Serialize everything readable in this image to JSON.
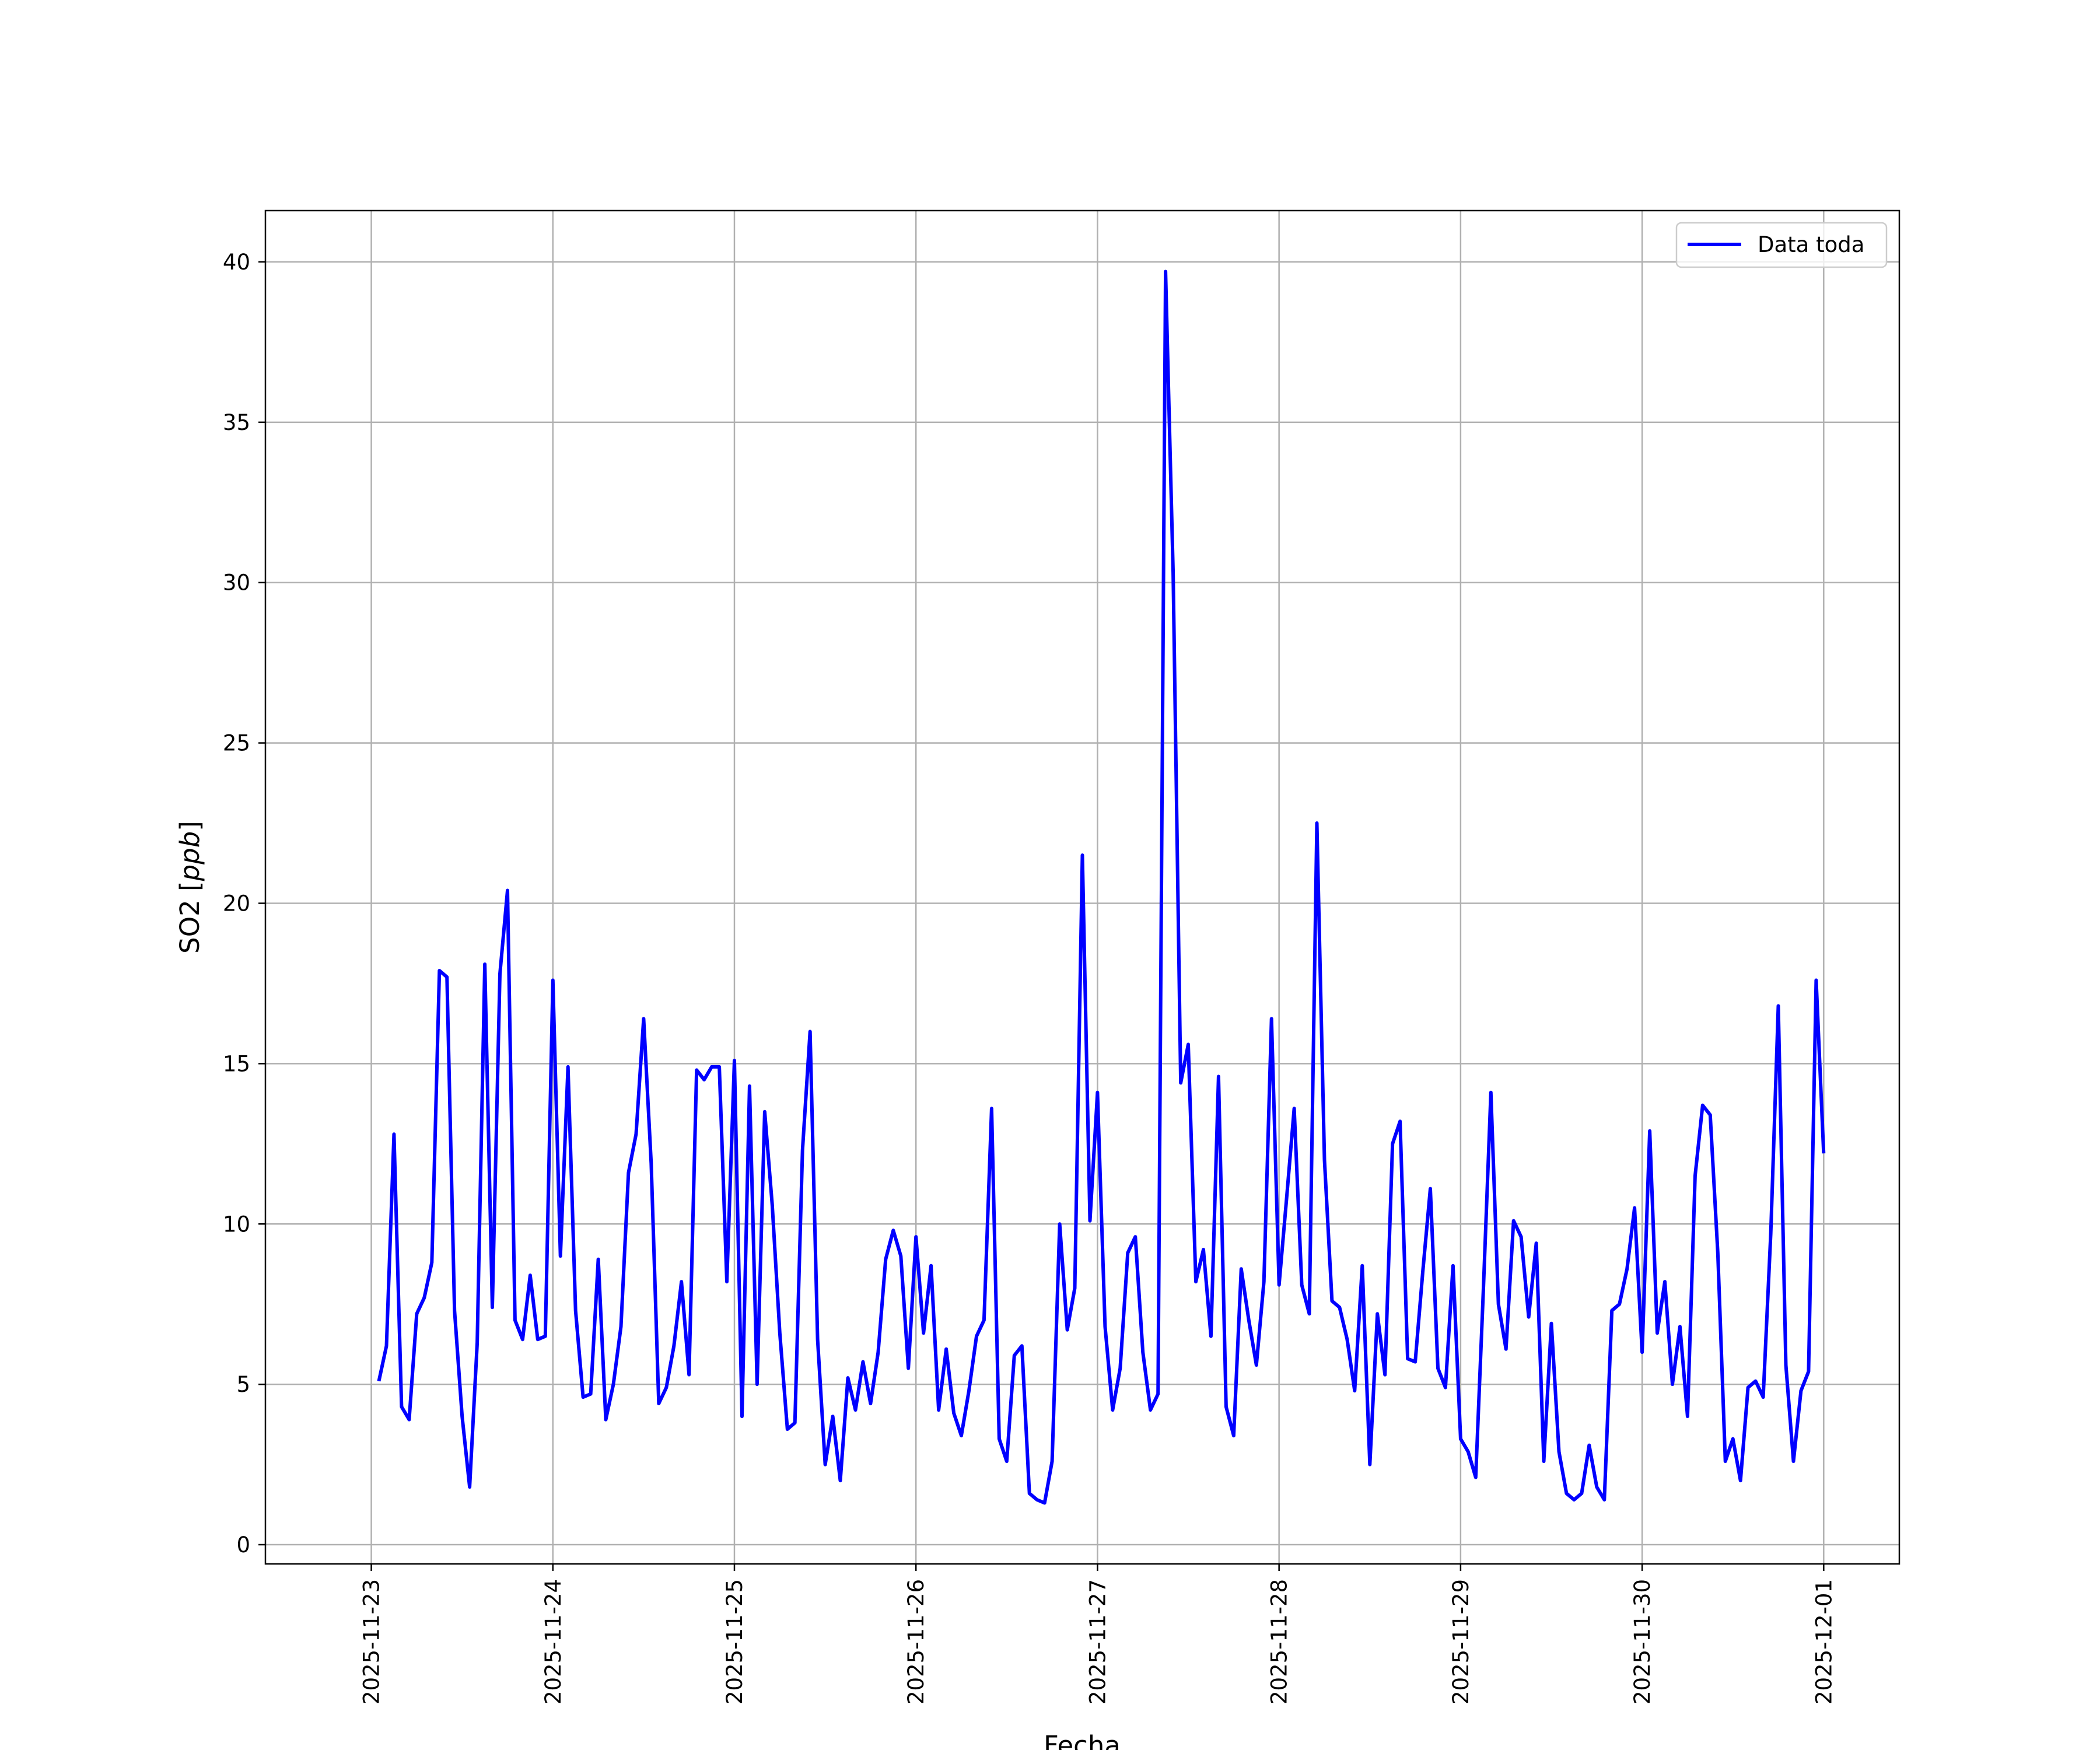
{
  "chart_data": {
    "type": "line",
    "title": "",
    "xlabel": "Fecha",
    "ylabel_main": "SO2 [",
    "ylabel_unit": "ppb",
    "ylabel_close": "]",
    "x_tick_labels": [
      "2025-11-23",
      "2025-11-24",
      "2025-11-25",
      "2025-11-26",
      "2025-11-27",
      "2025-11-28",
      "2025-11-29",
      "2025-11-30",
      "2025-12-01"
    ],
    "y_ticks": [
      0,
      5,
      10,
      15,
      20,
      25,
      30,
      35,
      40
    ],
    "ylim": [
      -0.6,
      41.6
    ],
    "xlim": [
      "2025-11-22T10:00",
      "2025-12-01T10:00"
    ],
    "grid": true,
    "legend_position": "top-right",
    "series": [
      {
        "name": "Data toda",
        "color": "#0000ff",
        "x": [
          "2025-11-23T01:00",
          "2025-11-23T02:00",
          "2025-11-23T03:00",
          "2025-11-23T04:00",
          "2025-11-23T05:00",
          "2025-11-23T06:00",
          "2025-11-23T07:00",
          "2025-11-23T08:00",
          "2025-11-23T09:00",
          "2025-11-23T10:00",
          "2025-11-23T11:00",
          "2025-11-23T12:00",
          "2025-11-23T13:00",
          "2025-11-23T14:00",
          "2025-11-23T15:00",
          "2025-11-23T16:00",
          "2025-11-23T17:00",
          "2025-11-23T18:00",
          "2025-11-23T19:00",
          "2025-11-23T20:00",
          "2025-11-23T21:00",
          "2025-11-23T22:00",
          "2025-11-23T23:00",
          "2025-11-24T00:00",
          "2025-11-24T01:00",
          "2025-11-24T02:00",
          "2025-11-24T03:00",
          "2025-11-24T04:00",
          "2025-11-24T05:00",
          "2025-11-24T06:00",
          "2025-11-24T07:00",
          "2025-11-24T08:00",
          "2025-11-24T09:00",
          "2025-11-24T10:00",
          "2025-11-24T11:00",
          "2025-11-24T12:00",
          "2025-11-24T13:00",
          "2025-11-24T14:00",
          "2025-11-24T15:00",
          "2025-11-24T16:00",
          "2025-11-24T17:00",
          "2025-11-24T18:00",
          "2025-11-24T19:00",
          "2025-11-24T20:00",
          "2025-11-24T21:00",
          "2025-11-24T22:00",
          "2025-11-24T23:00",
          "2025-11-25T00:00",
          "2025-11-25T01:00",
          "2025-11-25T02:00",
          "2025-11-25T03:00",
          "2025-11-25T04:00",
          "2025-11-25T05:00",
          "2025-11-25T06:00",
          "2025-11-25T07:00",
          "2025-11-25T08:00",
          "2025-11-25T09:00",
          "2025-11-25T10:00",
          "2025-11-25T11:00",
          "2025-11-25T12:00",
          "2025-11-25T13:00",
          "2025-11-25T14:00",
          "2025-11-25T15:00",
          "2025-11-25T16:00",
          "2025-11-25T17:00",
          "2025-11-25T18:00",
          "2025-11-25T19:00",
          "2025-11-25T20:00",
          "2025-11-25T21:00",
          "2025-11-25T22:00",
          "2025-11-25T23:00",
          "2025-11-26T00:00",
          "2025-11-26T01:00",
          "2025-11-26T02:00",
          "2025-11-26T03:00",
          "2025-11-26T04:00",
          "2025-11-26T05:00",
          "2025-11-26T06:00",
          "2025-11-26T07:00",
          "2025-11-26T08:00",
          "2025-11-26T09:00",
          "2025-11-26T10:00",
          "2025-11-26T11:00",
          "2025-11-26T12:00",
          "2025-11-26T13:00",
          "2025-11-26T14:00",
          "2025-11-26T15:00",
          "2025-11-26T16:00",
          "2025-11-26T17:00",
          "2025-11-26T18:00",
          "2025-11-26T19:00",
          "2025-11-26T20:00",
          "2025-11-26T21:00",
          "2025-11-26T22:00",
          "2025-11-26T23:00",
          "2025-11-27T00:00",
          "2025-11-27T01:00",
          "2025-11-27T02:00",
          "2025-11-27T03:00",
          "2025-11-27T04:00",
          "2025-11-27T05:00",
          "2025-11-27T06:00",
          "2025-11-27T07:00",
          "2025-11-27T08:00",
          "2025-11-27T09:00",
          "2025-11-27T10:00",
          "2025-11-27T11:00",
          "2025-11-27T12:00",
          "2025-11-27T13:00",
          "2025-11-27T14:00",
          "2025-11-27T15:00",
          "2025-11-27T16:00",
          "2025-11-27T17:00",
          "2025-11-27T18:00",
          "2025-11-27T19:00",
          "2025-11-27T20:00",
          "2025-11-27T21:00",
          "2025-11-27T22:00",
          "2025-11-27T23:00",
          "2025-11-28T00:00",
          "2025-11-28T01:00",
          "2025-11-28T02:00",
          "2025-11-28T03:00",
          "2025-11-28T04:00",
          "2025-11-28T05:00",
          "2025-11-28T06:00",
          "2025-11-28T07:00",
          "2025-11-28T08:00",
          "2025-11-28T09:00",
          "2025-11-28T10:00",
          "2025-11-28T11:00",
          "2025-11-28T12:00",
          "2025-11-28T13:00",
          "2025-11-28T14:00",
          "2025-11-28T15:00",
          "2025-11-28T16:00",
          "2025-11-28T17:00",
          "2025-11-28T18:00",
          "2025-11-28T19:00",
          "2025-11-28T20:00",
          "2025-11-28T21:00",
          "2025-11-28T22:00",
          "2025-11-28T23:00",
          "2025-11-29T00:00",
          "2025-11-29T01:00",
          "2025-11-29T02:00",
          "2025-11-29T03:00",
          "2025-11-29T04:00",
          "2025-11-29T05:00",
          "2025-11-29T06:00",
          "2025-11-29T07:00",
          "2025-11-29T08:00",
          "2025-11-29T09:00",
          "2025-11-29T10:00",
          "2025-11-29T11:00",
          "2025-11-29T12:00",
          "2025-11-29T13:00",
          "2025-11-29T14:00",
          "2025-11-29T15:00",
          "2025-11-29T16:00",
          "2025-11-29T17:00",
          "2025-11-29T18:00",
          "2025-11-29T19:00",
          "2025-11-29T20:00",
          "2025-11-29T21:00",
          "2025-11-29T22:00",
          "2025-11-29T23:00",
          "2025-11-30T00:00",
          "2025-11-30T01:00",
          "2025-11-30T02:00",
          "2025-11-30T03:00",
          "2025-11-30T04:00",
          "2025-11-30T05:00",
          "2025-11-30T06:00",
          "2025-11-30T07:00",
          "2025-11-30T08:00",
          "2025-11-30T09:00",
          "2025-11-30T10:00",
          "2025-11-30T11:00",
          "2025-11-30T12:00",
          "2025-11-30T13:00",
          "2025-11-30T14:00",
          "2025-11-30T15:00",
          "2025-11-30T16:00",
          "2025-11-30T17:00",
          "2025-11-30T18:00",
          "2025-11-30T19:00",
          "2025-11-30T20:00",
          "2025-11-30T21:00",
          "2025-11-30T22:00",
          "2025-11-30T23:00",
          "2025-12-01T00:00"
        ],
        "values": [
          5.1,
          6.2,
          12.8,
          4.3,
          3.9,
          7.2,
          7.7,
          8.8,
          17.9,
          17.7,
          7.3,
          4.0,
          1.8,
          6.3,
          18.1,
          7.4,
          17.8,
          20.4,
          7.0,
          6.4,
          8.4,
          6.4,
          6.5,
          17.6,
          9.0,
          14.9,
          7.3,
          4.6,
          4.7,
          8.9,
          3.9,
          5.0,
          6.8,
          11.6,
          12.8,
          16.4,
          11.9,
          4.4,
          4.9,
          6.2,
          8.2,
          5.3,
          14.8,
          14.5,
          14.9,
          14.9,
          8.2,
          15.1,
          4.0,
          14.3,
          5.0,
          13.5,
          10.6,
          6.6,
          3.6,
          3.8,
          12.3,
          16.0,
          6.4,
          2.5,
          4.0,
          2.0,
          5.2,
          4.2,
          5.7,
          4.4,
          6.0,
          8.9,
          9.8,
          9.0,
          5.5,
          9.6,
          6.6,
          8.7,
          4.2,
          6.1,
          4.1,
          3.4,
          4.8,
          6.5,
          7.0,
          13.6,
          3.3,
          2.6,
          5.9,
          6.2,
          1.6,
          1.4,
          1.3,
          2.6,
          10.0,
          6.7,
          8.0,
          21.5,
          10.1,
          14.1,
          6.8,
          4.2,
          5.5,
          9.1,
          9.6,
          6.0,
          4.2,
          4.7,
          39.7,
          30.3,
          14.4,
          15.6,
          8.2,
          9.2,
          6.5,
          14.6,
          4.3,
          3.4,
          8.6,
          7.0,
          5.6,
          8.2,
          16.4,
          8.1,
          10.8,
          13.6,
          8.1,
          7.2,
          22.5,
          12.0,
          7.6,
          7.4,
          6.4,
          4.8,
          8.7,
          2.5,
          7.2,
          5.3,
          12.5,
          13.2,
          5.8,
          5.7,
          8.5,
          11.1,
          5.5,
          4.9,
          8.7,
          3.3,
          2.9,
          2.1,
          7.9,
          14.1,
          7.5,
          6.1,
          10.1,
          9.6,
          7.1,
          9.4,
          2.6,
          6.9,
          2.9,
          1.6,
          1.4,
          1.6,
          3.1,
          1.8,
          1.4,
          7.3,
          7.5,
          8.6,
          10.5,
          6.0,
          12.9,
          6.6,
          8.2,
          5.0,
          6.8,
          4.0,
          11.5,
          13.7,
          13.4,
          9.1,
          2.6,
          3.3,
          2.0,
          4.9,
          5.1,
          4.6,
          9.7,
          16.8,
          5.6,
          2.6,
          4.8,
          5.4,
          17.6,
          12.2
        ]
      }
    ]
  }
}
